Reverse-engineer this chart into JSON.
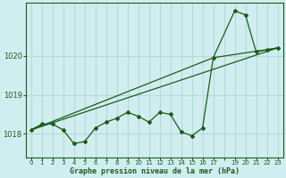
{
  "bg_color": "#d0eef0",
  "grid_color": "#b8d8da",
  "line_color": "#1a5c1a",
  "marker_color": "#1a5c1a",
  "xlabel": "Graphe pression niveau de la mer (hPa)",
  "xlabel_color": "#1a5c1a",
  "xlim": [
    -0.5,
    23.5
  ],
  "ylim": [
    1017.4,
    1021.35
  ],
  "yticks": [
    1018,
    1019,
    1020
  ],
  "xtick_labels": [
    "0",
    "1",
    "2",
    "3",
    "4",
    "5",
    "6",
    "7",
    "8",
    "9",
    "10",
    "11",
    "12",
    "13",
    "14",
    "15",
    "16",
    "17",
    "",
    "19",
    "20",
    "21",
    "22",
    "23"
  ],
  "xtick_positions": [
    0,
    1,
    2,
    3,
    4,
    5,
    6,
    7,
    8,
    9,
    10,
    11,
    12,
    13,
    14,
    15,
    16,
    17,
    18,
    19,
    20,
    21,
    22,
    23
  ],
  "series_main_x": [
    0,
    1,
    2,
    3,
    4,
    5,
    6,
    7,
    8,
    9,
    10,
    11,
    12,
    13,
    14,
    15,
    16,
    17,
    19,
    20,
    21,
    22,
    23
  ],
  "series_main_y": [
    1018.1,
    1018.25,
    1018.25,
    1018.1,
    1017.75,
    1017.8,
    1018.15,
    1018.3,
    1018.4,
    1018.55,
    1018.45,
    1018.3,
    1018.55,
    1018.5,
    1018.05,
    1017.95,
    1018.15,
    1019.95,
    1021.15,
    1021.05,
    1020.1,
    1020.15,
    1020.2
  ],
  "series_line1_x": [
    0,
    23
  ],
  "series_line1_y": [
    1018.1,
    1020.2
  ],
  "series_line2_x": [
    0,
    17,
    23
  ],
  "series_line2_y": [
    1018.1,
    1019.95,
    1020.2
  ]
}
